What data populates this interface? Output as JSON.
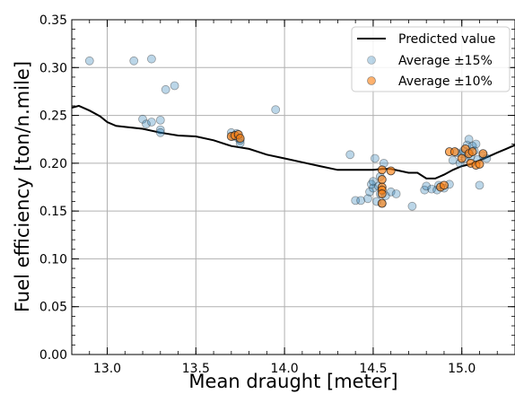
{
  "chart_data": {
    "type": "scatter",
    "title": "",
    "xlabel": "Mean draught [meter]",
    "ylabel": "Fuel efficiency [ton/n.mile]",
    "xlim": [
      12.8,
      15.3
    ],
    "ylim": [
      0.0,
      0.35
    ],
    "xticks": [
      13.0,
      13.5,
      14.0,
      14.5,
      15.0
    ],
    "xtick_labels": [
      "13.0",
      "13.5",
      "14.0",
      "14.5",
      "15.0"
    ],
    "yticks": [
      0.0,
      0.05,
      0.1,
      0.15,
      0.2,
      0.25,
      0.3,
      0.35
    ],
    "ytick_labels": [
      "0.00",
      "0.05",
      "0.10",
      "0.15",
      "0.20",
      "0.25",
      "0.30",
      "0.35"
    ],
    "grid": true,
    "legend_position": "top-right",
    "series": [
      {
        "name": "Predicted value",
        "kind": "line",
        "color": "#000000",
        "x": [
          12.8,
          12.84,
          12.9,
          12.96,
          13.0,
          13.05,
          13.1,
          13.2,
          13.3,
          13.4,
          13.5,
          13.6,
          13.7,
          13.8,
          13.9,
          14.0,
          14.1,
          14.2,
          14.3,
          14.4,
          14.45,
          14.5,
          14.55,
          14.6,
          14.65,
          14.7,
          14.75,
          14.8,
          14.85,
          14.9,
          14.95,
          15.0,
          15.05,
          15.1,
          15.15,
          15.2,
          15.25,
          15.3
        ],
        "y": [
          0.258,
          0.26,
          0.255,
          0.249,
          0.243,
          0.239,
          0.238,
          0.236,
          0.232,
          0.229,
          0.228,
          0.224,
          0.218,
          0.215,
          0.209,
          0.205,
          0.201,
          0.197,
          0.193,
          0.193,
          0.193,
          0.193,
          0.194,
          0.194,
          0.192,
          0.19,
          0.19,
          0.184,
          0.184,
          0.188,
          0.193,
          0.197,
          0.199,
          0.203,
          0.207,
          0.211,
          0.215,
          0.219
        ]
      },
      {
        "name": "Average ±15%",
        "kind": "scatter",
        "color": "#1f77b4",
        "points": [
          [
            12.9,
            0.307
          ],
          [
            13.15,
            0.307
          ],
          [
            13.25,
            0.309
          ],
          [
            13.33,
            0.277
          ],
          [
            13.38,
            0.281
          ],
          [
            13.2,
            0.246
          ],
          [
            13.22,
            0.241
          ],
          [
            13.25,
            0.243
          ],
          [
            13.3,
            0.245
          ],
          [
            13.3,
            0.235
          ],
          [
            13.3,
            0.232
          ],
          [
            13.95,
            0.256
          ],
          [
            14.37,
            0.209
          ],
          [
            13.7,
            0.232
          ],
          [
            13.71,
            0.228
          ],
          [
            13.73,
            0.231
          ],
          [
            13.74,
            0.226
          ],
          [
            13.75,
            0.221
          ],
          [
            13.75,
            0.224
          ],
          [
            14.4,
            0.161
          ],
          [
            14.43,
            0.161
          ],
          [
            14.47,
            0.163
          ],
          [
            14.48,
            0.17
          ],
          [
            14.49,
            0.178
          ],
          [
            14.5,
            0.174
          ],
          [
            14.5,
            0.181
          ],
          [
            14.51,
            0.205
          ],
          [
            14.52,
            0.16
          ],
          [
            14.53,
            0.176
          ],
          [
            14.54,
            0.168
          ],
          [
            14.54,
            0.186
          ],
          [
            14.55,
            0.158
          ],
          [
            14.56,
            0.2
          ],
          [
            14.57,
            0.166
          ],
          [
            14.6,
            0.17
          ],
          [
            14.63,
            0.168
          ],
          [
            14.72,
            0.155
          ],
          [
            14.79,
            0.172
          ],
          [
            14.8,
            0.176
          ],
          [
            14.83,
            0.173
          ],
          [
            14.86,
            0.172
          ],
          [
            14.87,
            0.177
          ],
          [
            14.9,
            0.174
          ],
          [
            14.93,
            0.178
          ],
          [
            14.95,
            0.203
          ],
          [
            14.97,
            0.211
          ],
          [
            14.99,
            0.2
          ],
          [
            15.0,
            0.21
          ],
          [
            15.01,
            0.213
          ],
          [
            15.02,
            0.205
          ],
          [
            15.03,
            0.219
          ],
          [
            15.04,
            0.225
          ],
          [
            15.05,
            0.207
          ],
          [
            15.06,
            0.218
          ],
          [
            15.07,
            0.213
          ],
          [
            15.08,
            0.22
          ],
          [
            15.09,
            0.204
          ],
          [
            15.1,
            0.177
          ],
          [
            15.12,
            0.208
          ],
          [
            15.14,
            0.205
          ]
        ]
      },
      {
        "name": "Average ±10%",
        "kind": "scatter",
        "color": "#ff7f0e",
        "points": [
          [
            13.7,
            0.228
          ],
          [
            13.72,
            0.229
          ],
          [
            13.74,
            0.23
          ],
          [
            13.75,
            0.226
          ],
          [
            14.55,
            0.193
          ],
          [
            14.55,
            0.183
          ],
          [
            14.55,
            0.175
          ],
          [
            14.55,
            0.172
          ],
          [
            14.55,
            0.168
          ],
          [
            14.55,
            0.158
          ],
          [
            14.6,
            0.192
          ],
          [
            14.88,
            0.175
          ],
          [
            14.9,
            0.177
          ],
          [
            14.93,
            0.212
          ],
          [
            14.96,
            0.212
          ],
          [
            15.0,
            0.205
          ],
          [
            15.02,
            0.215
          ],
          [
            15.04,
            0.21
          ],
          [
            15.05,
            0.2
          ],
          [
            15.06,
            0.212
          ],
          [
            15.08,
            0.198
          ],
          [
            15.1,
            0.199
          ],
          [
            15.12,
            0.21
          ]
        ]
      }
    ]
  }
}
